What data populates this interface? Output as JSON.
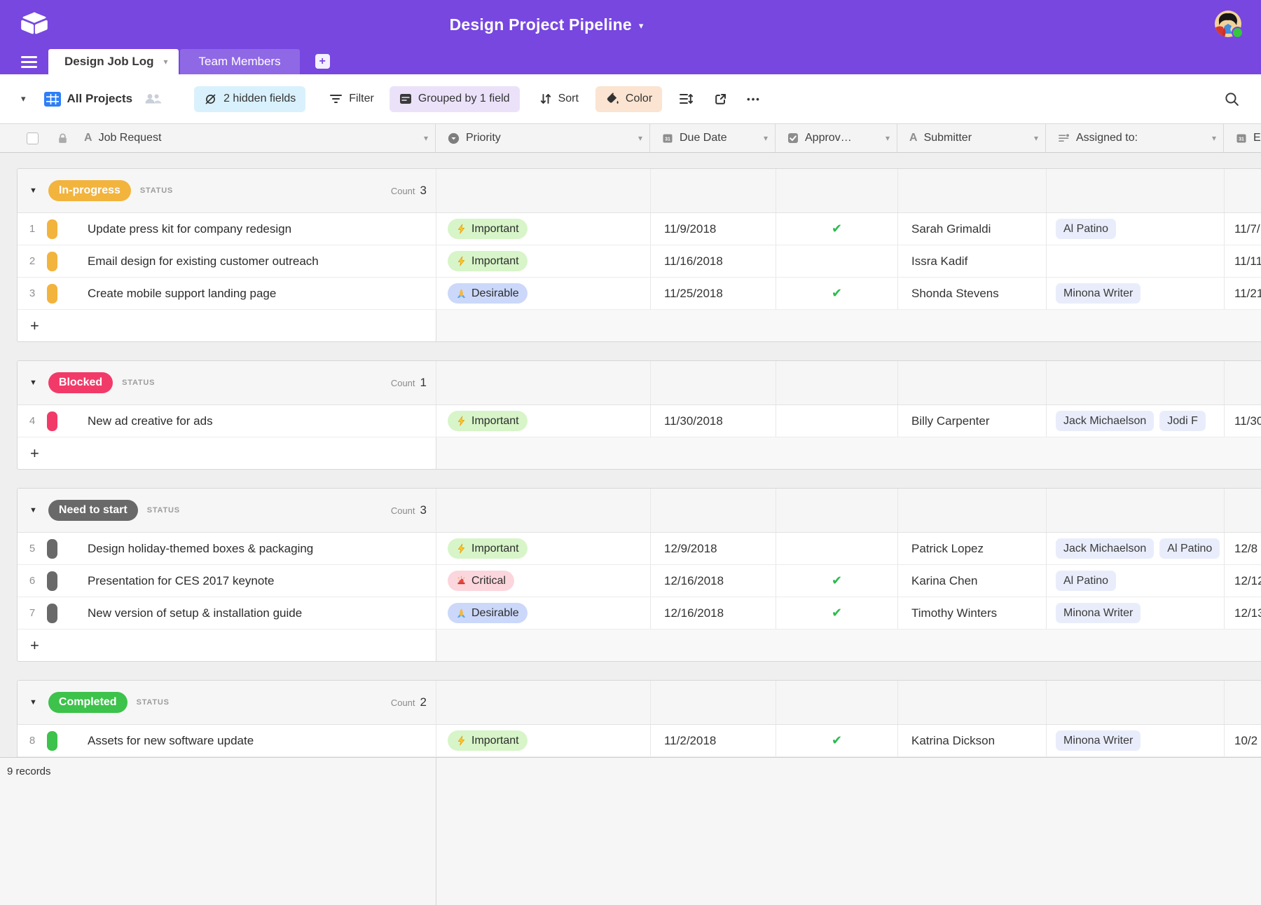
{
  "colors": {
    "appbar": "#7747E0",
    "hidden_fields_pill": "#D9F1FC",
    "grouped_pill": "#EBE2FA",
    "color_pill": "#FBE4D1",
    "collaborator_chip": "#E9EDFB",
    "approved_check": "#2CBB4E",
    "view_icon_blue": "#2D7FF9"
  },
  "appbar": {
    "title": "Design Project Pipeline",
    "title_caret": "▾",
    "logo_icon": "airtable-logo",
    "avatar_icon": "user-avatar",
    "avatar_status": "online"
  },
  "tabs": {
    "items": [
      {
        "label": "Design Job Log",
        "active": true
      },
      {
        "label": "Team Members",
        "active": false
      }
    ],
    "add_tab_label": "+"
  },
  "toolbar": {
    "collapse_caret": "▾",
    "view_name": "All Projects",
    "hidden_fields": "2 hidden fields",
    "filter": "Filter",
    "grouped": "Grouped by 1 field",
    "sort": "Sort",
    "color": "Color",
    "more_label": "•••"
  },
  "columns": [
    {
      "label": "Job Request",
      "icon": "text-field-icon"
    },
    {
      "label": "Priority",
      "icon": "single-select-icon"
    },
    {
      "label": "Due Date",
      "icon": "calendar-icon"
    },
    {
      "label": "Approv…",
      "icon": "checkbox-icon"
    },
    {
      "label": "Submitter",
      "icon": "text-field-icon"
    },
    {
      "label": "Assigned to:",
      "icon": "collaborator-icon"
    },
    {
      "label": "E",
      "icon": "calendar-icon"
    }
  ],
  "group_field_label": "STATUS",
  "count_label": "Count",
  "collapse_icon": "▼",
  "add_record_label": "+",
  "approved_icon": "✔",
  "priorities": {
    "important": {
      "label": "Important",
      "icon": "zap-icon",
      "bg": "#D7F5C8"
    },
    "desirable": {
      "label": "Desirable",
      "icon": "pray-icon",
      "bg": "#CBD8FA"
    },
    "critical": {
      "label": "Critical",
      "icon": "siren-icon",
      "bg": "#FBD6DC"
    }
  },
  "groups": [
    {
      "status": "In-progress",
      "color": "#F2B43D",
      "count": 3,
      "rows": [
        {
          "num": 1,
          "job": "Update press kit for company redesign",
          "priority": "important",
          "due": "11/9/2018",
          "approved": true,
          "submitter": "Sarah Grimaldi",
          "assigned": [
            "Al Patino"
          ],
          "end_date": "11/7/"
        },
        {
          "num": 2,
          "job": "Email design for existing customer outreach",
          "priority": "important",
          "due": "11/16/2018",
          "approved": false,
          "submitter": "Issra Kadif",
          "assigned": [],
          "end_date": "11/11"
        },
        {
          "num": 3,
          "job": "Create mobile support landing page",
          "priority": "desirable",
          "due": "11/25/2018",
          "approved": true,
          "submitter": "Shonda Stevens",
          "assigned": [
            "Minona Writer"
          ],
          "end_date": "11/21"
        }
      ]
    },
    {
      "status": "Blocked",
      "color": "#F23A68",
      "count": 1,
      "rows": [
        {
          "num": 4,
          "job": "New ad creative for ads",
          "priority": "important",
          "due": "11/30/2018",
          "approved": false,
          "submitter": "Billy Carpenter",
          "assigned": [
            "Jack Michaelson",
            "Jodi F"
          ],
          "end_date": "11/30"
        }
      ]
    },
    {
      "status": "Need to start",
      "color": "#696969",
      "count": 3,
      "rows": [
        {
          "num": 5,
          "job": "Design holiday-themed boxes & packaging",
          "priority": "important",
          "due": "12/9/2018",
          "approved": false,
          "submitter": "Patrick Lopez",
          "assigned": [
            "Jack Michaelson",
            "Al Patino"
          ],
          "end_date": "12/8"
        },
        {
          "num": 6,
          "job": "Presentation for CES 2017 keynote",
          "priority": "critical",
          "due": "12/16/2018",
          "approved": true,
          "submitter": "Karina Chen",
          "assigned": [
            "Al Patino"
          ],
          "end_date": "12/12"
        },
        {
          "num": 7,
          "job": "New version of setup & installation guide",
          "priority": "desirable",
          "due": "12/16/2018",
          "approved": true,
          "submitter": "Timothy Winters",
          "assigned": [
            "Minona Writer"
          ],
          "end_date": "12/13"
        }
      ]
    },
    {
      "status": "Completed",
      "color": "#3DC24B",
      "count": 2,
      "rows": [
        {
          "num": 8,
          "job": "Assets for new software update",
          "priority": "important",
          "due": "11/2/2018",
          "approved": true,
          "submitter": "Katrina Dickson",
          "assigned": [
            "Minona Writer"
          ],
          "end_date": "10/2"
        },
        {
          "sliver": true
        }
      ]
    }
  ],
  "footer": {
    "records": "9 records"
  }
}
